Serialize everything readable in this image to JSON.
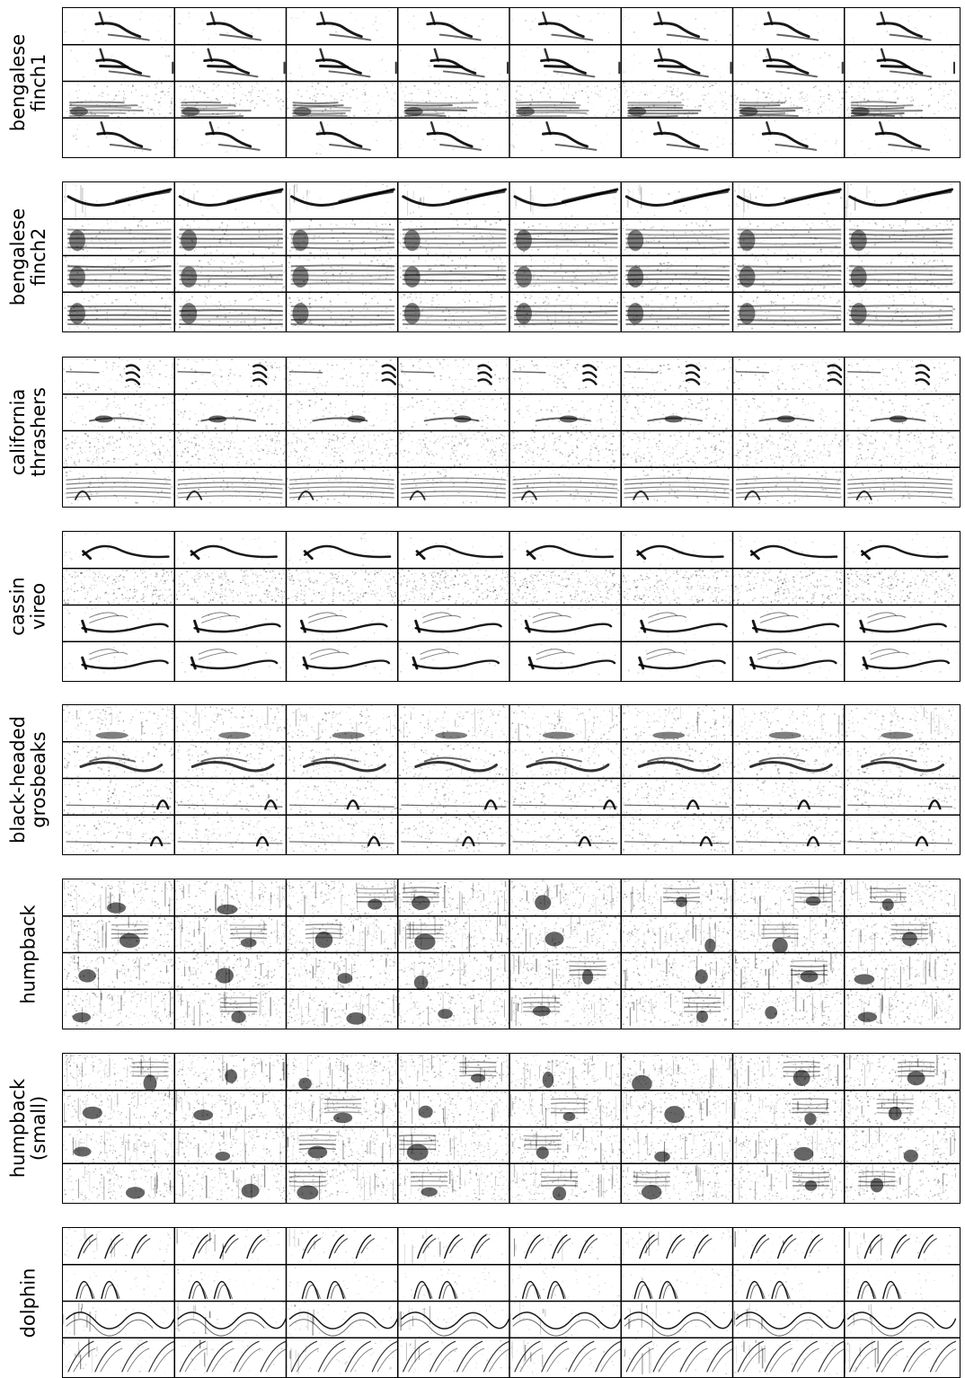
{
  "figure": {
    "rows_per_group": 4,
    "columns_per_group": 8,
    "colormap": "greys",
    "groups": [
      {
        "label": "bengalese\nfinch1",
        "pattern": "bengalese-finch1"
      },
      {
        "label": "bengalese\nfinch2",
        "pattern": "bengalese-finch2"
      },
      {
        "label": "california\nthrashers",
        "pattern": "california-thrashers"
      },
      {
        "label": "cassin\nvireo",
        "pattern": "cassin-vireo"
      },
      {
        "label": "black-headed\ngrosbeaks",
        "pattern": "black-headed-grosbeaks"
      },
      {
        "label": "humpback",
        "pattern": "humpback"
      },
      {
        "label": "humpback\n(small)",
        "pattern": "humpback-small"
      },
      {
        "label": "dolphin",
        "pattern": "dolphin"
      }
    ]
  }
}
